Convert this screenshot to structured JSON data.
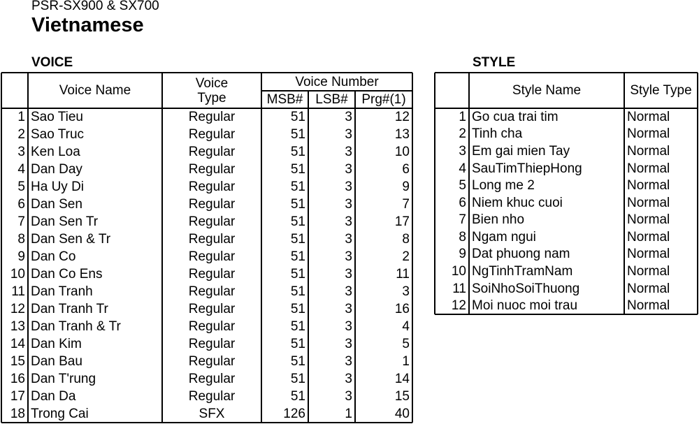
{
  "header": {
    "model": "PSR-SX900 & SX700",
    "title": "Vietnamese"
  },
  "voice": {
    "heading": "VOICE",
    "columns": [
      "Voice Name",
      "Voice Type",
      "Voice Number",
      "MSB#",
      "LSB#",
      "Prg#(1)"
    ],
    "rows": [
      [
        1,
        "Sao Tieu",
        "Regular",
        51,
        3,
        12
      ],
      [
        2,
        "Sao Truc",
        "Regular",
        51,
        3,
        13
      ],
      [
        3,
        "Ken Loa",
        "Regular",
        51,
        3,
        10
      ],
      [
        4,
        "Dan Day",
        "Regular",
        51,
        3,
        6
      ],
      [
        5,
        "Ha Uy Di",
        "Regular",
        51,
        3,
        9
      ],
      [
        6,
        "Dan Sen",
        "Regular",
        51,
        3,
        7
      ],
      [
        7,
        "Dan Sen Tr",
        "Regular",
        51,
        3,
        17
      ],
      [
        8,
        "Dan Sen & Tr",
        "Regular",
        51,
        3,
        8
      ],
      [
        9,
        "Dan Co",
        "Regular",
        51,
        3,
        2
      ],
      [
        10,
        "Dan Co Ens",
        "Regular",
        51,
        3,
        11
      ],
      [
        11,
        "Dan Tranh",
        "Regular",
        51,
        3,
        3
      ],
      [
        12,
        "Dan Tranh Tr",
        "Regular",
        51,
        3,
        16
      ],
      [
        13,
        "Dan Tranh & Tr",
        "Regular",
        51,
        3,
        4
      ],
      [
        14,
        "Dan Kim",
        "Regular",
        51,
        3,
        5
      ],
      [
        15,
        "Dan Bau",
        "Regular",
        51,
        3,
        1
      ],
      [
        16,
        "Dan T'rung",
        "Regular",
        51,
        3,
        14
      ],
      [
        17,
        "Dan Da",
        "Regular",
        51,
        3,
        15
      ],
      [
        18,
        "Trong Cai",
        "SFX",
        126,
        1,
        40
      ]
    ]
  },
  "style": {
    "heading": "STYLE",
    "columns": [
      "Style Name",
      "Style Type"
    ],
    "rows": [
      [
        1,
        "Go cua trai tim",
        "Normal"
      ],
      [
        2,
        "Tinh cha",
        "Normal"
      ],
      [
        3,
        "Em gai mien Tay",
        "Normal"
      ],
      [
        4,
        "SauTimThiepHong",
        "Normal"
      ],
      [
        5,
        "Long me 2",
        "Normal"
      ],
      [
        6,
        "Niem khuc cuoi",
        "Normal"
      ],
      [
        7,
        "Bien nho",
        "Normal"
      ],
      [
        8,
        "Ngam ngui",
        "Normal"
      ],
      [
        9,
        "Dat phuong nam",
        "Normal"
      ],
      [
        10,
        "NgTinhTramNam",
        "Normal"
      ],
      [
        11,
        "SoiNhoSoiThuong",
        "Normal"
      ],
      [
        12,
        "Moi nuoc moi trau",
        "Normal"
      ]
    ]
  }
}
